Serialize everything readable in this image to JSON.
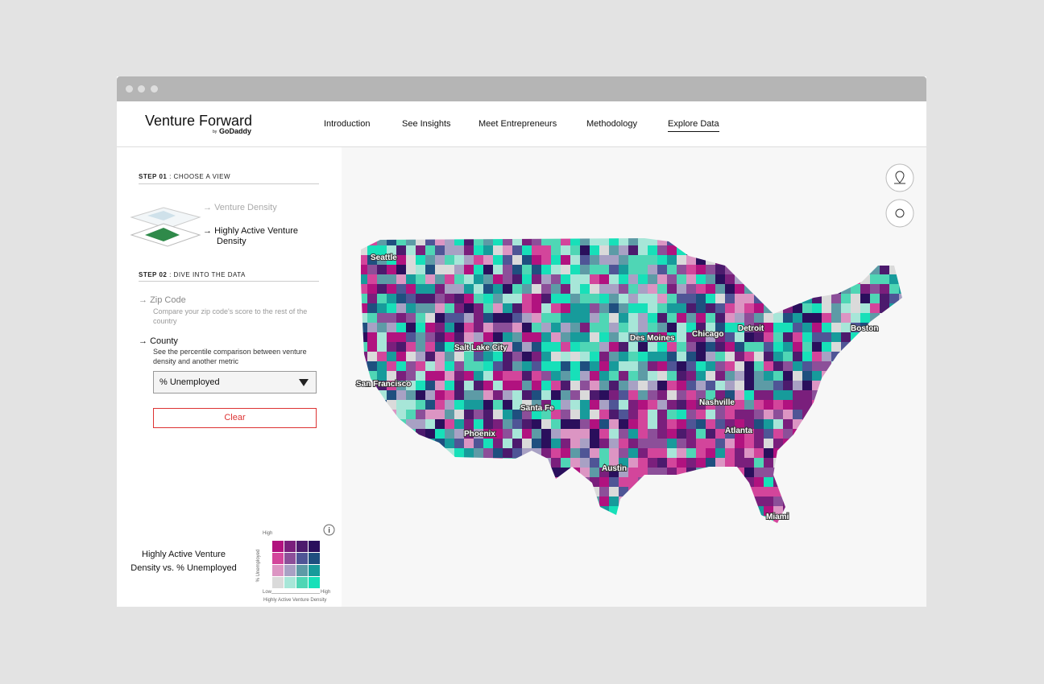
{
  "header": {
    "logo": "Venture Forward",
    "logo_by": "by",
    "logo_brand": "GoDaddy",
    "nav": [
      "Introduction",
      "See Insights",
      "Meet Entrepreneurs",
      "Methodology",
      "Explore Data"
    ]
  },
  "sidebar": {
    "step1": {
      "label": "STEP 01",
      "title": ": CHOOSE A VIEW",
      "options": [
        "Venture Density",
        "Highly Active Venture Density"
      ]
    },
    "step2": {
      "label": "STEP 02",
      "title": ": DIVE INTO THE DATA",
      "zip": {
        "title": "Zip Code",
        "desc": "Compare your zip code's score to the rest of the country"
      },
      "county": {
        "title": "County",
        "desc": "See the percentile comparison between venture density and another metric"
      },
      "dropdown": "% Unemployed",
      "button": "Clear"
    }
  },
  "legend": {
    "title": "Highly Active Venture Density vs. % Unemployed",
    "y_high": "High",
    "y_axis": "% Unemployed",
    "x_low": "Low",
    "x_high": "High",
    "x_axis": "Highly Active Venture Density"
  },
  "map": {
    "cities": [
      "Seattle",
      "Salt Lake City",
      "San Francisco",
      "Santa Fe",
      "Phoenix",
      "Austin",
      "Des Moines",
      "Chicago",
      "Detroit",
      "Boston",
      "Nashville",
      "Atlanta",
      "Miami"
    ]
  }
}
